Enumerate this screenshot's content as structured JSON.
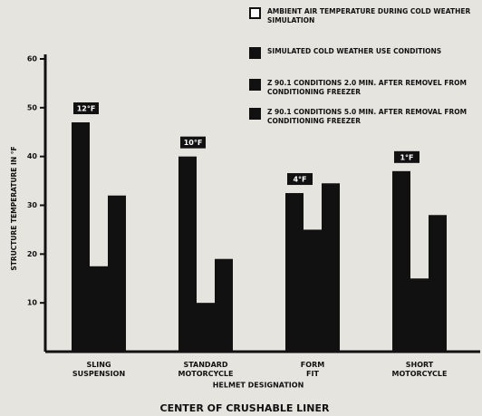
{
  "chart_data": {
    "type": "bar",
    "caption": "CENTER OF CRUSHABLE LINER",
    "xlabel": "HELMET DESIGNATION",
    "ylabel": "STRUCTURE TEMPERATURE IN °F",
    "categories": [
      "SLING SUSPENSION",
      "STANDARD MOTORCYCLE",
      "FORM FIT",
      "SHORT MOTORCYCLE"
    ],
    "series": [
      {
        "name": "AMBIENT AIR TEMPERATURE DURING COLD WEATHER SIMULATION",
        "color": "#ffffff",
        "values": [
          12,
          10,
          4,
          1
        ],
        "value_labels": [
          "12°F",
          "10°F",
          "4°F",
          "1°F"
        ]
      },
      {
        "name": "SIMULATED COLD WEATHER USE CONDITIONS",
        "color": "#111111",
        "values": [
          47,
          40,
          32.5,
          37
        ]
      },
      {
        "name": "Z 90.1 CONDITIONS 2.0 MIN. AFTER REMOVEL FROM CONDITIONING FREEZER",
        "color": "#111111",
        "values": [
          17.5,
          10,
          25,
          15
        ]
      },
      {
        "name": "Z 90.1 CONDITIONS 5.0 MIN. AFTER REMOVAL FROM CONDITIONING FREEZER",
        "color": "#111111",
        "values": [
          32,
          19,
          34.5,
          28
        ]
      }
    ],
    "ylim": [
      0,
      60
    ],
    "yticks": [
      10,
      20,
      30,
      40,
      50,
      60
    ]
  }
}
